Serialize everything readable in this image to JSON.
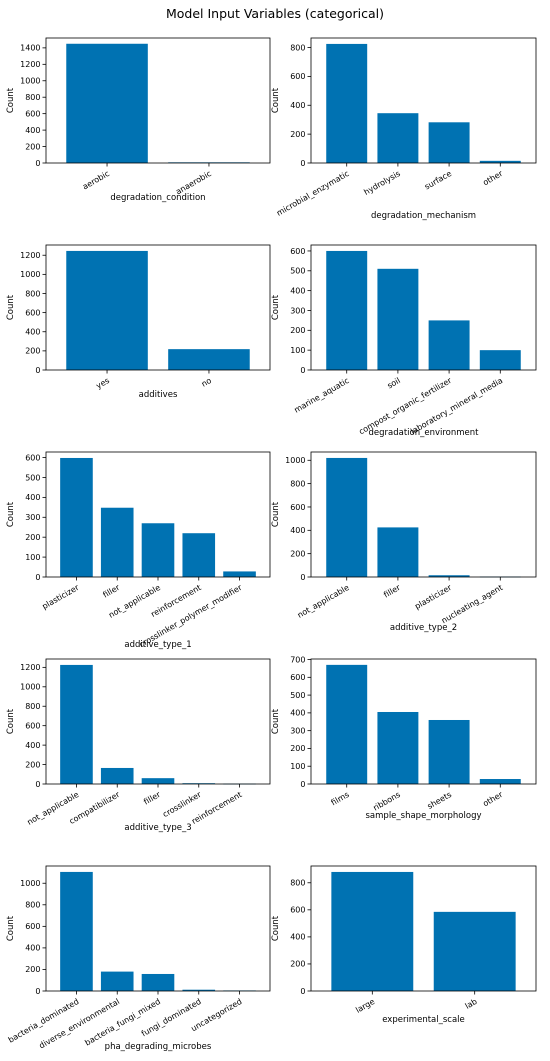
{
  "figure": {
    "title": "Model Input Variables (categorical)"
  },
  "colors": {
    "bar": "#0072B2",
    "axis": "#000000"
  },
  "chart_data": [
    {
      "type": "bar",
      "xlabel": "degradation_condition",
      "ylabel": "Count",
      "categories": [
        "aerobic",
        "anaerobic"
      ],
      "values": [
        1450,
        8
      ],
      "ylim": [
        0,
        1520
      ],
      "yticks": [
        0,
        200,
        400,
        600,
        800,
        1000,
        1200,
        1400
      ]
    },
    {
      "type": "bar",
      "xlabel": "degradation_mechanism",
      "ylabel": "Count",
      "categories": [
        "microbial_enzymatic",
        "hydrolysis",
        "surface",
        "other"
      ],
      "values": [
        825,
        345,
        282,
        15
      ],
      "ylim": [
        0,
        866
      ],
      "yticks": [
        0,
        200,
        400,
        600,
        800
      ]
    },
    {
      "type": "bar",
      "xlabel": "additives",
      "ylabel": "Count",
      "categories": [
        "yes",
        "no"
      ],
      "values": [
        1245,
        218
      ],
      "ylim": [
        0,
        1307
      ],
      "yticks": [
        0,
        200,
        400,
        600,
        800,
        1000,
        1200
      ]
    },
    {
      "type": "bar",
      "xlabel": "degradation_environment",
      "ylabel": "Count",
      "categories": [
        "marine_aquatic",
        "soil",
        "compost_organic_fertilizer",
        "laboratory_mineral_media"
      ],
      "values": [
        600,
        510,
        250,
        100
      ],
      "ylim": [
        0,
        630
      ],
      "yticks": [
        0,
        100,
        200,
        300,
        400,
        500,
        600
      ]
    },
    {
      "type": "bar",
      "xlabel": "additive_type_1",
      "ylabel": "Count",
      "categories": [
        "plasticizer",
        "filler",
        "not_applicable",
        "reinforcement",
        "crosslinker_polymer_modifier"
      ],
      "values": [
        598,
        348,
        270,
        220,
        28
      ],
      "ylim": [
        0,
        628
      ],
      "yticks": [
        0,
        100,
        200,
        300,
        400,
        500,
        600
      ]
    },
    {
      "type": "bar",
      "xlabel": "additive_type_2",
      "ylabel": "Count",
      "categories": [
        "not_applicable",
        "filler",
        "plasticizer",
        "nucleating_agent"
      ],
      "values": [
        1020,
        425,
        15,
        3
      ],
      "ylim": [
        0,
        1071
      ],
      "yticks": [
        0,
        200,
        400,
        600,
        800,
        1000
      ]
    },
    {
      "type": "bar",
      "xlabel": "additive_type_3",
      "ylabel": "Count",
      "categories": [
        "not_applicable",
        "compatibilizer",
        "filler",
        "crosslinker",
        "reinforcement"
      ],
      "values": [
        1225,
        165,
        60,
        8,
        3
      ],
      "ylim": [
        0,
        1286
      ],
      "yticks": [
        0,
        200,
        400,
        600,
        800,
        1000,
        1200
      ]
    },
    {
      "type": "bar",
      "xlabel": "sample_shape_morphology",
      "ylabel": "Count",
      "categories": [
        "films",
        "ribbons",
        "sheets",
        "other"
      ],
      "values": [
        670,
        405,
        360,
        28
      ],
      "ylim": [
        0,
        703
      ],
      "yticks": [
        0,
        100,
        200,
        300,
        400,
        500,
        600,
        700
      ]
    },
    {
      "type": "bar",
      "xlabel": "pha_degrading_microbes",
      "ylabel": "Count",
      "categories": [
        "bacteria_dominated",
        "diverse_environmental",
        "bacteria_fungi_mixed",
        "fungi_dominated",
        "uncategorized"
      ],
      "values": [
        1105,
        180,
        158,
        12,
        5
      ],
      "ylim": [
        0,
        1160
      ],
      "yticks": [
        0,
        200,
        400,
        600,
        800,
        1000
      ]
    },
    {
      "type": "bar",
      "xlabel": "experimental_scale",
      "ylabel": "Count",
      "categories": [
        "large",
        "lab"
      ],
      "values": [
        880,
        585
      ],
      "ylim": [
        0,
        924
      ],
      "yticks": [
        0,
        200,
        400,
        600,
        800
      ]
    }
  ]
}
